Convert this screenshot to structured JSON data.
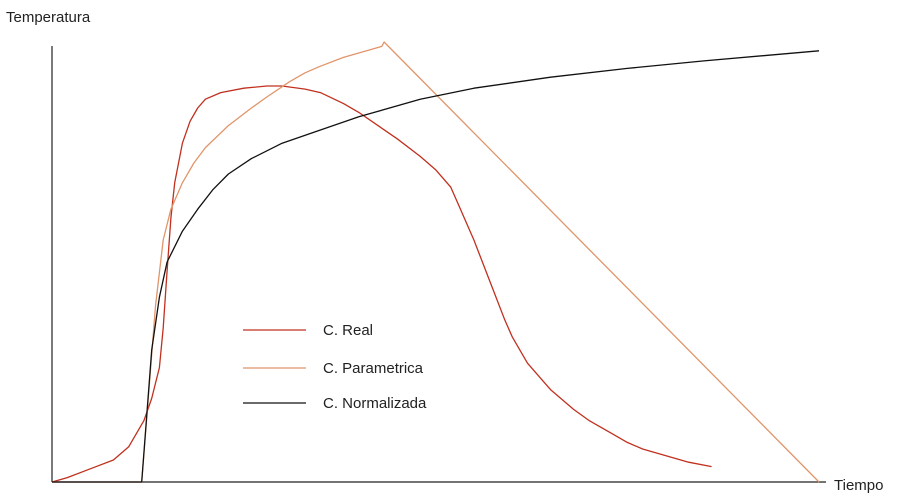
{
  "chart_data": {
    "type": "line",
    "title": "",
    "ylabel": "Temperatura",
    "xlabel": "Tiempo",
    "xlim": [
      0,
      100
    ],
    "ylim": [
      0,
      100
    ],
    "grid": false,
    "legend_position": "center-left",
    "axis_color": "#222222",
    "series": [
      {
        "name": "C. Real",
        "color": "#c0301e",
        "x": [
          0,
          2,
          5,
          8,
          10,
          11,
          12,
          13,
          14,
          14.5,
          15,
          15.5,
          16,
          17,
          18,
          19,
          20,
          22,
          25,
          28,
          30,
          33,
          35,
          38,
          40,
          45,
          48,
          50,
          52,
          53,
          55,
          57,
          59,
          60,
          62,
          65,
          68,
          70,
          73,
          75,
          77,
          80,
          83,
          86
        ],
        "y": [
          0,
          1,
          3,
          5,
          8,
          11,
          14,
          19,
          26,
          35,
          48,
          60,
          68,
          77,
          82,
          85,
          87,
          88.5,
          89.5,
          90,
          90,
          89.3,
          88.5,
          86,
          84,
          78,
          74,
          71,
          67,
          63,
          55,
          46,
          37,
          33,
          27,
          21,
          16.5,
          14,
          11,
          9,
          7.5,
          6,
          4.5,
          3.5
        ]
      },
      {
        "name": "C. Parametrica",
        "color": "#e0956a",
        "x": [
          0,
          11.7,
          12.5,
          13.5,
          14.5,
          15.5,
          17,
          18.5,
          20,
          23,
          26,
          28,
          31,
          33,
          35,
          38,
          40,
          43,
          43.3,
          100
        ],
        "y": [
          0,
          0,
          18,
          40,
          55,
          62,
          68,
          72.5,
          76,
          81,
          85,
          87.5,
          91,
          93,
          94.5,
          96.5,
          97.5,
          99,
          100,
          0
        ]
      },
      {
        "name": "C. Normalizada",
        "color": "#111111",
        "x": [
          0,
          11.7,
          13,
          14,
          15,
          17,
          19,
          21,
          23,
          26,
          30,
          35,
          40,
          48,
          55,
          65,
          75,
          85,
          100
        ],
        "y": [
          0,
          0,
          30,
          42,
          50,
          57,
          62,
          66.5,
          70,
          73.5,
          77,
          80,
          83,
          87,
          89.5,
          92,
          94,
          95.7,
          98
        ]
      }
    ]
  }
}
